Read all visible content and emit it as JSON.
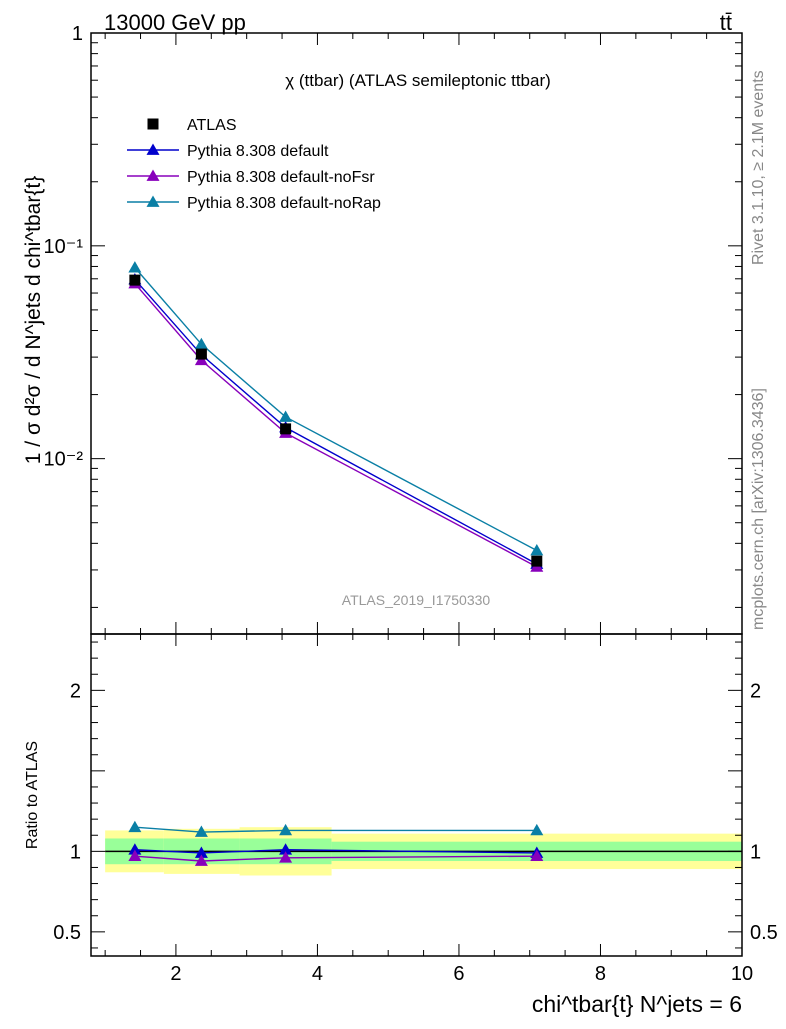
{
  "header": {
    "energy_label": "13000 GeV pp",
    "process_label": "tt̄"
  },
  "side_labels": {
    "rivet": "Rivet 3.1.10, ≥ 2.1M events",
    "mcplots": "mcplots.cern.ch [arXiv:1306.3436]"
  },
  "main_plot": {
    "title": "χ (ttbar) (ATLAS semileptonic ttbar)",
    "ylabel": "1 / σ d²σ / d N^jets d chi^tbar{t}",
    "watermark": "ATLAS_2019_I1750330"
  },
  "ratio_plot": {
    "ylabel": "Ratio to ATLAS"
  },
  "x_axis": {
    "label": "chi^tbar{t} N^jets = 6"
  },
  "chart_data": {
    "type": "line",
    "xlim": [
      0.8,
      10
    ],
    "ylim": [
      0.0015,
      1
    ],
    "yscale": "log",
    "ratio_ylim": [
      0.35,
      2.35
    ],
    "x_ticks": [
      "2",
      "4",
      "6",
      "8",
      "10"
    ],
    "y_ticks_main": [
      "1",
      "10⁻¹",
      "10⁻²"
    ],
    "y_ticks_ratio": [
      "2",
      "1",
      "0.5"
    ],
    "bin_edges": [
      1,
      1.83,
      2.9,
      4.2,
      10
    ],
    "x": [
      1.42,
      2.36,
      3.55,
      7.1
    ],
    "series": [
      {
        "name": "ATLAS",
        "marker": "square",
        "color": "#000000",
        "values": [
          0.069,
          0.031,
          0.0138,
          0.0033
        ]
      },
      {
        "name": "Pythia 8.308 default",
        "marker": "triangle",
        "color": "#0000cc",
        "values": [
          0.0695,
          0.0308,
          0.014,
          0.0032
        ],
        "ratio": [
          1.01,
          0.99,
          1.01,
          0.99
        ]
      },
      {
        "name": "Pythia 8.308 default-noFsr",
        "marker": "triangle",
        "color": "#8800bb",
        "values": [
          0.0665,
          0.029,
          0.0132,
          0.0031
        ],
        "ratio": [
          0.97,
          0.94,
          0.96,
          0.97
        ]
      },
      {
        "name": "Pythia 8.308 default-noRap",
        "marker": "triangle",
        "color": "#0a7fa5",
        "values": [
          0.079,
          0.0345,
          0.0157,
          0.0037
        ],
        "ratio": [
          1.15,
          1.12,
          1.13,
          1.13
        ]
      }
    ],
    "ratio_bands": {
      "stat": [
        0.08,
        0.08,
        0.08,
        0.06
      ],
      "total": [
        0.13,
        0.14,
        0.15,
        0.11
      ]
    },
    "band_colors": {
      "stat": "#99ff99",
      "total": "#ffff99"
    },
    "legend_position": "top-left",
    "grid": false
  }
}
